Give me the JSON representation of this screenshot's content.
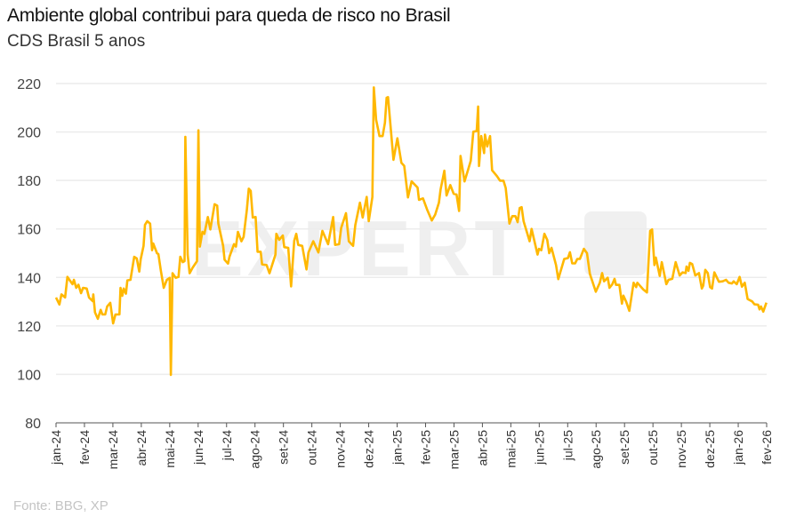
{
  "title": "Ambiente global contribui para queda de risco no Brasil",
  "subtitle": "CDS Brasil 5 anos",
  "source": "Fonte: BBG, XP",
  "watermark": {
    "text": "EXPERT",
    "badge": "XP"
  },
  "colors": {
    "line": "#FFB800",
    "grid": "#ECECEC",
    "axis": "#555555"
  },
  "chart_data": {
    "type": "line",
    "title": "Ambiente global contribui para queda de risco no Brasil",
    "subtitle": "CDS Brasil 5 anos",
    "xlabel": "",
    "ylabel": "",
    "ylim": [
      80,
      220
    ],
    "yticks": [
      80,
      100,
      120,
      140,
      160,
      180,
      200,
      220
    ],
    "grid": true,
    "x_unit": "months since jan-24",
    "xticks": [
      "jan-24",
      "fev-24",
      "mar-24",
      "abr-24",
      "mai-24",
      "jun-24",
      "jul-24",
      "ago-24",
      "set-24",
      "out-24",
      "nov-24",
      "dez-24",
      "jan-25",
      "fev-25",
      "mar-25",
      "abr-25",
      "mai-25",
      "jun-25",
      "jul-25",
      "ago-25",
      "set-25",
      "out-25",
      "nov-25",
      "dez-25",
      "jan-26",
      "fev-26"
    ],
    "series": [
      {
        "name": "CDS Brasil 5 anos",
        "points": [
          [
            0,
            131.7
          ],
          [
            0.12,
            128.8
          ],
          [
            0.19,
            133
          ],
          [
            0.32,
            131.7
          ],
          [
            0.4,
            140.2
          ],
          [
            0.58,
            137.2
          ],
          [
            0.63,
            139
          ],
          [
            0.71,
            135.7
          ],
          [
            0.79,
            137
          ],
          [
            0.88,
            133.5
          ],
          [
            0.95,
            135.7
          ],
          [
            1.08,
            135.4
          ],
          [
            1.16,
            131.7
          ],
          [
            1.29,
            130.2
          ],
          [
            1.31,
            133
          ],
          [
            1.37,
            125.6
          ],
          [
            1.47,
            122.9
          ],
          [
            1.57,
            126.6
          ],
          [
            1.63,
            124.7
          ],
          [
            1.73,
            124.7
          ],
          [
            1.8,
            128
          ],
          [
            1.91,
            129.5
          ],
          [
            2.01,
            121
          ],
          [
            2.09,
            124.7
          ],
          [
            2.23,
            124.7
          ],
          [
            2.27,
            135.7
          ],
          [
            2.33,
            132.4
          ],
          [
            2.38,
            135.4
          ],
          [
            2.46,
            133.3
          ],
          [
            2.51,
            138.8
          ],
          [
            2.62,
            139
          ],
          [
            2.75,
            148.5
          ],
          [
            2.84,
            147.8
          ],
          [
            2.93,
            142.4
          ],
          [
            2.98,
            147.5
          ],
          [
            3.08,
            153
          ],
          [
            3.13,
            161.7
          ],
          [
            3.21,
            163.2
          ],
          [
            3.31,
            162.2
          ],
          [
            3.38,
            151.2
          ],
          [
            3.42,
            154
          ],
          [
            3.55,
            150
          ],
          [
            3.6,
            149.6
          ],
          [
            3.69,
            142.7
          ],
          [
            3.79,
            135.7
          ],
          [
            3.9,
            139
          ],
          [
            4.0,
            139.8
          ],
          [
            4.04,
            99.8
          ],
          [
            4.1,
            141.7
          ],
          [
            4.21,
            139.8
          ],
          [
            4.31,
            140.2
          ],
          [
            4.37,
            148.5
          ],
          [
            4.46,
            146.3
          ],
          [
            4.52,
            146.7
          ],
          [
            4.55,
            198
          ],
          [
            4.63,
            149.4
          ],
          [
            4.7,
            141.7
          ],
          [
            4.8,
            143.9
          ],
          [
            4.96,
            146.7
          ],
          [
            5.01,
            200.7
          ],
          [
            5.06,
            152.7
          ],
          [
            5.15,
            158.8
          ],
          [
            5.22,
            158
          ],
          [
            5.34,
            164.9
          ],
          [
            5.43,
            159.8
          ],
          [
            5.58,
            170.2
          ],
          [
            5.67,
            169.6
          ],
          [
            5.71,
            162.2
          ],
          [
            5.88,
            153
          ],
          [
            5.93,
            147.3
          ],
          [
            6.05,
            145.7
          ],
          [
            6.1,
            148.5
          ],
          [
            6.26,
            153.7
          ],
          [
            6.33,
            152.7
          ],
          [
            6.4,
            158.8
          ],
          [
            6.52,
            154.9
          ],
          [
            6.6,
            156.7
          ],
          [
            6.71,
            167.7
          ],
          [
            6.78,
            176.6
          ],
          [
            6.85,
            175.7
          ],
          [
            6.92,
            164.7
          ],
          [
            7.02,
            164.9
          ],
          [
            7.09,
            150.6
          ],
          [
            7.2,
            150.6
          ],
          [
            7.25,
            145.4
          ],
          [
            7.41,
            145.1
          ],
          [
            7.51,
            141.7
          ],
          [
            7.72,
            149.4
          ],
          [
            7.75,
            158
          ],
          [
            7.85,
            155.5
          ],
          [
            7.98,
            157.3
          ],
          [
            8.03,
            152.5
          ],
          [
            8.17,
            152.2
          ],
          [
            8.27,
            136.3
          ],
          [
            8.38,
            155.1
          ],
          [
            8.45,
            158
          ],
          [
            8.52,
            153.4
          ],
          [
            8.66,
            153
          ],
          [
            8.81,
            143.3
          ],
          [
            8.88,
            150.3
          ],
          [
            9.05,
            154.9
          ],
          [
            9.23,
            150.3
          ],
          [
            9.37,
            159.2
          ],
          [
            9.57,
            153.7
          ],
          [
            9.75,
            164.9
          ],
          [
            9.82,
            153.4
          ],
          [
            9.96,
            153.7
          ],
          [
            10.03,
            160.4
          ],
          [
            10.2,
            166.5
          ],
          [
            10.3,
            154.9
          ],
          [
            10.45,
            153
          ],
          [
            10.53,
            161.6
          ],
          [
            10.69,
            170.8
          ],
          [
            10.79,
            164.7
          ],
          [
            10.93,
            173.2
          ],
          [
            11.0,
            163.2
          ],
          [
            11.13,
            173.2
          ],
          [
            11.18,
            218.4
          ],
          [
            11.26,
            205
          ],
          [
            11.38,
            198.3
          ],
          [
            11.49,
            198.3
          ],
          [
            11.57,
            203.8
          ],
          [
            11.63,
            214.1
          ],
          [
            11.68,
            214.4
          ],
          [
            11.87,
            188.5
          ],
          [
            12.01,
            197.4
          ],
          [
            12.15,
            187.3
          ],
          [
            12.25,
            186
          ],
          [
            12.38,
            173
          ],
          [
            12.51,
            179.6
          ],
          [
            12.72,
            177.1
          ],
          [
            12.77,
            172
          ],
          [
            12.91,
            172.6
          ],
          [
            13.05,
            168.1
          ],
          [
            13.22,
            163.5
          ],
          [
            13.34,
            165.9
          ],
          [
            13.47,
            170.8
          ],
          [
            13.53,
            176.3
          ],
          [
            13.66,
            184
          ],
          [
            13.74,
            173.8
          ],
          [
            13.87,
            178.1
          ],
          [
            13.99,
            174.5
          ],
          [
            14.09,
            174.2
          ],
          [
            14.18,
            167.4
          ],
          [
            14.23,
            190.1
          ],
          [
            14.37,
            179.6
          ],
          [
            14.49,
            184.2
          ],
          [
            14.59,
            188.1
          ],
          [
            14.68,
            200.1
          ],
          [
            14.8,
            200.4
          ],
          [
            14.85,
            210.5
          ],
          [
            14.88,
            186
          ],
          [
            14.96,
            198.3
          ],
          [
            15.06,
            191.3
          ],
          [
            15.09,
            198.9
          ],
          [
            15.17,
            194
          ],
          [
            15.27,
            198.3
          ],
          [
            15.34,
            184.2
          ],
          [
            15.51,
            181.8
          ],
          [
            15.62,
            179.9
          ],
          [
            15.74,
            179.9
          ],
          [
            15.82,
            176.9
          ],
          [
            15.95,
            162.2
          ],
          [
            16.05,
            165.3
          ],
          [
            16.16,
            165.3
          ],
          [
            16.24,
            162.8
          ],
          [
            16.31,
            168.6
          ],
          [
            16.38,
            169
          ],
          [
            16.45,
            163.2
          ],
          [
            16.66,
            154.9
          ],
          [
            16.73,
            160
          ],
          [
            16.94,
            149.4
          ],
          [
            16.99,
            151.8
          ],
          [
            17.07,
            151.2
          ],
          [
            17.18,
            158
          ],
          [
            17.28,
            155.5
          ],
          [
            17.35,
            150
          ],
          [
            17.43,
            152.2
          ],
          [
            17.59,
            145.1
          ],
          [
            17.67,
            139.3
          ],
          [
            17.8,
            144.5
          ],
          [
            17.88,
            147.6
          ],
          [
            18.01,
            148
          ],
          [
            18.08,
            150.4
          ],
          [
            18.16,
            145.8
          ],
          [
            18.26,
            145.8
          ],
          [
            18.34,
            147.6
          ],
          [
            18.43,
            147.6
          ],
          [
            18.57,
            151.8
          ],
          [
            18.68,
            150
          ],
          [
            18.78,
            141.5
          ],
          [
            18.99,
            134.1
          ],
          [
            19.13,
            137.8
          ],
          [
            19.21,
            141.8
          ],
          [
            19.28,
            138.4
          ],
          [
            19.41,
            139.9
          ],
          [
            19.47,
            135.7
          ],
          [
            19.57,
            137.2
          ],
          [
            19.65,
            139.4
          ],
          [
            19.7,
            136.9
          ],
          [
            19.82,
            136.9
          ],
          [
            19.91,
            129.2
          ],
          [
            19.96,
            132.5
          ],
          [
            20.06,
            129.9
          ],
          [
            20.17,
            126.2
          ],
          [
            20.32,
            137.8
          ],
          [
            20.41,
            136
          ],
          [
            20.45,
            137.8
          ],
          [
            20.66,
            135
          ],
          [
            20.79,
            133.8
          ],
          [
            20.9,
            159.2
          ],
          [
            20.97,
            159.8
          ],
          [
            21.05,
            145.1
          ],
          [
            21.1,
            148.2
          ],
          [
            21.24,
            140.6
          ],
          [
            21.31,
            146.3
          ],
          [
            21.47,
            137.2
          ],
          [
            21.55,
            139
          ],
          [
            21.68,
            139.4
          ],
          [
            21.8,
            146.3
          ],
          [
            21.94,
            140.8
          ],
          [
            22.04,
            142.1
          ],
          [
            22.15,
            141.8
          ],
          [
            22.18,
            144.5
          ],
          [
            22.25,
            142.7
          ],
          [
            22.3,
            146
          ],
          [
            22.38,
            145.5
          ],
          [
            22.49,
            140.8
          ],
          [
            22.62,
            141.8
          ],
          [
            22.72,
            135.4
          ],
          [
            22.77,
            136.6
          ],
          [
            22.84,
            143.1
          ],
          [
            22.93,
            141.8
          ],
          [
            23.01,
            136
          ],
          [
            23.08,
            135.4
          ],
          [
            23.16,
            142.1
          ],
          [
            23.32,
            138.2
          ],
          [
            23.45,
            138.4
          ],
          [
            23.57,
            139
          ],
          [
            23.66,
            137.8
          ],
          [
            23.78,
            137.5
          ],
          [
            23.84,
            138.4
          ],
          [
            23.95,
            137.2
          ],
          [
            24.05,
            140.2
          ],
          [
            24.13,
            136.2
          ],
          [
            24.23,
            137.8
          ],
          [
            24.33,
            131.1
          ],
          [
            24.49,
            130.1
          ],
          [
            24.57,
            128.9
          ],
          [
            24.7,
            128.7
          ],
          [
            24.75,
            126.8
          ],
          [
            24.8,
            128
          ],
          [
            24.88,
            125.9
          ],
          [
            24.99,
            129.6
          ]
        ]
      }
    ],
    "legend": "none"
  }
}
